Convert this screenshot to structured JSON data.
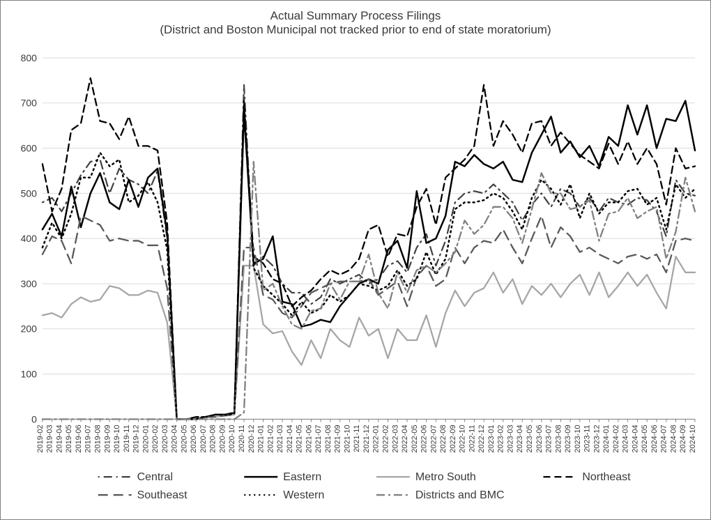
{
  "title": {
    "line1": "Actual Summary Process Filings",
    "line2": "(District and Boston Municipal not tracked prior to end of state moratorium)",
    "fontsize": 17,
    "color": "#3a3a3a"
  },
  "chart": {
    "type": "line",
    "background_color": "#ffffff",
    "grid_color": "#d9d9d9",
    "axis_color": "#7f7f7f",
    "font_family": "Arial",
    "ylim": [
      0,
      800
    ],
    "ytick_step": 100,
    "label_fontsize": 14,
    "x_label_fontsize": 11,
    "categories": [
      "2019-02",
      "2019-03",
      "2019-04",
      "2019-05",
      "2019-06",
      "2019-07",
      "2019-08",
      "2019-09",
      "2019-10",
      "2019-11",
      "2019-12",
      "2020-01",
      "2020-02",
      "2020-03",
      "2020-04",
      "2020-05",
      "2020-06",
      "2020-07",
      "2020-08",
      "2020-09",
      "2020-10",
      "2020-11",
      "2020-12",
      "2021-01",
      "2021-02",
      "2021-03",
      "2021-04",
      "2021-05",
      "2021-06",
      "2021-07",
      "2021-08",
      "2021-09",
      "2021-10",
      "2021-11",
      "2021-12",
      "2022-01",
      "2022-02",
      "2022-03",
      "2022-04",
      "2022-05",
      "2022-06",
      "2022-07",
      "2022-08",
      "2022-09",
      "2022-10",
      "2022-11",
      "2022-12",
      "2023-01",
      "2023-02",
      "2023-03",
      "2023-04",
      "2023-05",
      "2023-06",
      "2023-07",
      "2023-08",
      "2023-09",
      "2023-10",
      "2023-11",
      "2023-12",
      "2024-01",
      "2024-02",
      "2024-03",
      "2024-04",
      "2024-05",
      "2024-06",
      "2024-07",
      "2024-08",
      "2024-09",
      "2024-10"
    ],
    "series": [
      {
        "name": "Central",
        "color": "#404040",
        "stroke_width": 2.2,
        "dash": "2 6 12 6",
        "data": [
          480,
          490,
          460,
          500,
          540,
          570,
          575,
          500,
          555,
          530,
          520,
          500,
          550,
          400,
          0,
          0,
          5,
          5,
          10,
          10,
          15,
          740,
          340,
          360,
          340,
          300,
          280,
          280,
          255,
          270,
          310,
          300,
          310,
          320,
          300,
          310,
          340,
          350,
          325,
          380,
          410,
          340,
          395,
          480,
          500,
          505,
          500,
          520,
          500,
          480,
          440,
          475,
          500,
          470,
          510,
          500,
          470,
          490,
          460,
          490,
          480,
          475,
          490,
          485,
          460,
          405,
          530,
          500,
          495
        ]
      },
      {
        "name": "Eastern",
        "color": "#000000",
        "stroke_width": 2.5,
        "dash": "",
        "data": [
          420,
          455,
          405,
          515,
          425,
          500,
          545,
          480,
          465,
          530,
          470,
          535,
          555,
          410,
          0,
          0,
          0,
          5,
          10,
          10,
          12,
          680,
          345,
          355,
          405,
          260,
          255,
          205,
          210,
          220,
          215,
          250,
          275,
          300,
          310,
          300,
          375,
          395,
          335,
          505,
          390,
          400,
          450,
          570,
          560,
          585,
          565,
          555,
          570,
          530,
          525,
          590,
          630,
          670,
          590,
          615,
          580,
          605,
          560,
          625,
          605,
          695,
          630,
          695,
          600,
          665,
          660,
          705,
          595
        ]
      },
      {
        "name": "Metro South",
        "color": "#a6a6a6",
        "stroke_width": 2.3,
        "dash": "",
        "data": [
          230,
          235,
          225,
          255,
          270,
          260,
          265,
          295,
          290,
          275,
          275,
          285,
          280,
          215,
          0,
          0,
          0,
          5,
          5,
          8,
          10,
          340,
          340,
          210,
          190,
          195,
          150,
          120,
          175,
          135,
          200,
          175,
          160,
          225,
          185,
          200,
          135,
          200,
          175,
          175,
          230,
          160,
          235,
          285,
          250,
          280,
          290,
          325,
          280,
          310,
          255,
          295,
          275,
          300,
          270,
          300,
          320,
          275,
          325,
          270,
          295,
          325,
          295,
          320,
          280,
          245,
          360,
          325,
          325
        ]
      },
      {
        "name": "Northeast",
        "color": "#000000",
        "stroke_width": 2.3,
        "dash": "10 6",
        "data": [
          565,
          460,
          510,
          640,
          655,
          755,
          660,
          655,
          620,
          670,
          605,
          605,
          595,
          435,
          0,
          0,
          5,
          5,
          10,
          10,
          15,
          695,
          360,
          345,
          310,
          300,
          250,
          270,
          285,
          310,
          330,
          320,
          330,
          355,
          420,
          430,
          360,
          410,
          405,
          470,
          510,
          430,
          535,
          555,
          575,
          605,
          740,
          605,
          660,
          630,
          590,
          655,
          660,
          605,
          635,
          610,
          585,
          570,
          555,
          610,
          565,
          615,
          565,
          600,
          565,
          475,
          600,
          555,
          560
        ]
      },
      {
        "name": "Southeast",
        "color": "#595959",
        "stroke_width": 2.3,
        "dash": "14 8",
        "data": [
          365,
          405,
          395,
          345,
          450,
          440,
          430,
          395,
          400,
          395,
          395,
          385,
          385,
          290,
          0,
          0,
          0,
          5,
          5,
          8,
          10,
          380,
          380,
          275,
          265,
          235,
          225,
          250,
          280,
          290,
          300,
          305,
          305,
          305,
          310,
          275,
          290,
          305,
          250,
          315,
          340,
          295,
          310,
          380,
          345,
          380,
          395,
          390,
          420,
          380,
          345,
          400,
          450,
          380,
          425,
          405,
          370,
          380,
          365,
          355,
          345,
          360,
          365,
          355,
          365,
          325,
          395,
          400,
          395
        ]
      },
      {
        "name": "Western",
        "color": "#000000",
        "stroke_width": 2.5,
        "dash": "2 5",
        "data": [
          380,
          435,
          400,
          455,
          535,
          535,
          590,
          560,
          575,
          480,
          495,
          525,
          480,
          375,
          0,
          0,
          0,
          5,
          10,
          10,
          12,
          705,
          335,
          295,
          275,
          255,
          230,
          260,
          235,
          245,
          275,
          260,
          275,
          300,
          295,
          285,
          295,
          330,
          295,
          310,
          370,
          320,
          355,
          465,
          480,
          480,
          485,
          500,
          490,
          460,
          420,
          490,
          530,
          510,
          475,
          520,
          445,
          500,
          455,
          480,
          480,
          505,
          510,
          475,
          490,
          420,
          520,
          490,
          510
        ]
      },
      {
        "name": "Districts and BMC",
        "color": "#808080",
        "stroke_width": 2.3,
        "dash": "12 5 3 5",
        "data": [
          0,
          0,
          0,
          0,
          0,
          0,
          0,
          0,
          0,
          0,
          0,
          0,
          0,
          0,
          0,
          0,
          0,
          0,
          0,
          0,
          0,
          15,
          570,
          285,
          300,
          250,
          210,
          200,
          240,
          245,
          300,
          265,
          305,
          305,
          365,
          280,
          245,
          325,
          280,
          330,
          340,
          325,
          345,
          370,
          440,
          410,
          430,
          470,
          470,
          445,
          390,
          465,
          545,
          500,
          500,
          465,
          470,
          485,
          395,
          455,
          460,
          490,
          445,
          460,
          470,
          355,
          415,
          535,
          460
        ]
      }
    ],
    "legend": {
      "position": "bottom",
      "fontsize": 16,
      "color": "#3a3a3a"
    }
  }
}
